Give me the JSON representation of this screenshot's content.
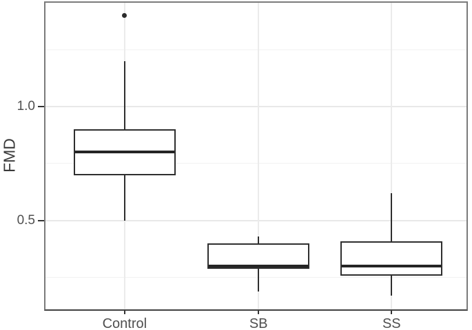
{
  "chart_data": {
    "type": "boxplot",
    "title": "",
    "xlabel": "",
    "ylabel": "FMD",
    "categories": [
      "Control",
      "SB",
      "SS"
    ],
    "series": [
      {
        "name": "Control",
        "min": 0.5,
        "q1": 0.7,
        "median": 0.8,
        "q3": 0.9,
        "max": 1.2,
        "outliers": [
          1.4
        ]
      },
      {
        "name": "SB",
        "min": 0.19,
        "q1": 0.29,
        "median": 0.3,
        "q3": 0.4,
        "max": 0.43,
        "outliers": []
      },
      {
        "name": "SS",
        "min": 0.17,
        "q1": 0.26,
        "median": 0.3,
        "q3": 0.41,
        "max": 0.62,
        "outliers": []
      }
    ],
    "ylim": [
      0.105,
      1.461
    ],
    "yticks": {
      "major": [
        0.5,
        1.0
      ],
      "labels": [
        "0.5",
        "1.0"
      ],
      "minor": [
        0.25,
        0.75,
        1.25
      ]
    },
    "grid": "major+minor",
    "legend": "none",
    "colors": {
      "box_stroke": "#2e2e2e",
      "median": "#252525",
      "panel_border": "#7a7a7a",
      "axis_line": "#3f3f3f",
      "grid_major": "#e8e8e8",
      "grid_minor": "#f2f2f2",
      "tick_label": "#4f4f4f",
      "axis_title": "#3a3a3a",
      "background": "#ffffff"
    }
  }
}
